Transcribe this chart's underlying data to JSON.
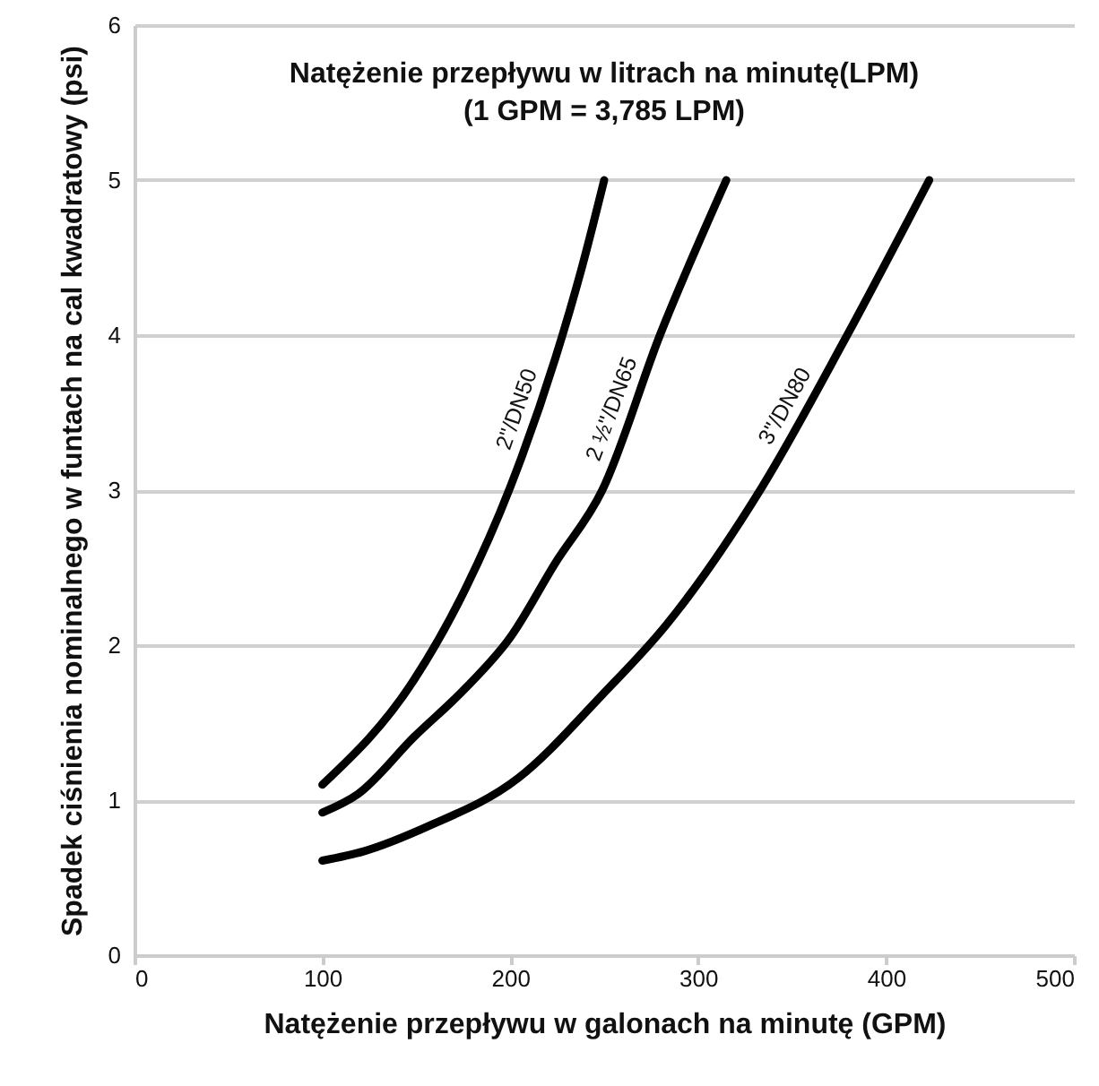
{
  "chart_data": {
    "type": "line",
    "title": [
      "Natężenie przepływu w litrach na minutę(LPM)",
      "(1 GPM = 3,785 LPM)"
    ],
    "xlabel": "Natężenie przepływu w galonach na minutę (GPM)",
    "ylabel": "Spadek ciśnienia nominalnego w funtach na cal kwadratowy (psi)",
    "xlim": [
      0,
      500
    ],
    "xticks": [
      0,
      100,
      200,
      300,
      400,
      500
    ],
    "ylim": [
      0,
      6
    ],
    "yticks": [
      0,
      1,
      2,
      3,
      4,
      5,
      6
    ],
    "grid": "y",
    "marker": "none",
    "line_style": "solid",
    "series": [
      {
        "name": "2\"/DN50",
        "color": "#000000",
        "x": [
          100,
          149,
          176,
          200,
          224,
          238,
          250
        ],
        "values": [
          1.1,
          1.78,
          2.36,
          3.02,
          3.85,
          4.43,
          5.0
        ]
      },
      {
        "name": "2 ½\"/DN65",
        "color": "#000000",
        "x": [
          100,
          119,
          149,
          176,
          200,
          224,
          249,
          280,
          315
        ],
        "values": [
          0.92,
          1.04,
          1.41,
          1.72,
          2.05,
          2.53,
          3.0,
          4.01,
          5.0
        ]
      },
      {
        "name": "3\"/DN80",
        "color": "#000000",
        "x": [
          100,
          122,
          156,
          204,
          249,
          283,
          334,
          378,
          423
        ],
        "values": [
          0.61,
          0.67,
          0.83,
          1.14,
          1.68,
          2.13,
          3.02,
          3.97,
          5.0
        ]
      }
    ]
  }
}
